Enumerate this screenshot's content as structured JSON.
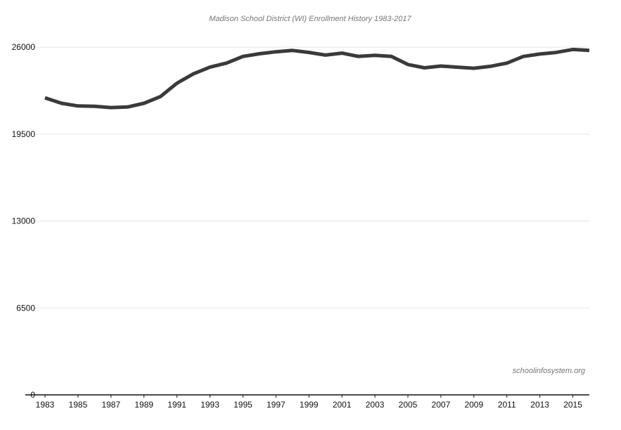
{
  "chart_data": {
    "type": "line",
    "title": "Madison School District (WI) Enrollment History 1983-2017",
    "xlabel": "",
    "ylabel": "",
    "watermark": "schoolinfosystem.org",
    "ylim": [
      0,
      26000
    ],
    "xlim": [
      1983,
      2016
    ],
    "grid": true,
    "legend": "none",
    "y_ticks": [
      0,
      6500,
      13000,
      19500,
      26000
    ],
    "x_ticks": [
      1983,
      1985,
      1987,
      1989,
      1991,
      1993,
      1995,
      1997,
      1999,
      2001,
      2003,
      2005,
      2007,
      2009,
      2011,
      2013,
      2015
    ],
    "line_color": "#3a3a3a",
    "grid_color": "#e6e6e6",
    "axis_color": "#111111",
    "series": [
      {
        "x": [
          1983,
          1984,
          1985,
          1986,
          1987,
          1988,
          1989,
          1990,
          1991,
          1992,
          1993,
          1994,
          1995,
          1996,
          1997,
          1998,
          1999,
          2000,
          2001,
          2002,
          2003,
          2004,
          2005,
          2006,
          2007,
          2008,
          2009,
          2010,
          2011,
          2012,
          2013,
          2014,
          2015,
          2016
        ],
        "values": [
          22200,
          21800,
          21600,
          21580,
          21480,
          21520,
          21800,
          22300,
          23300,
          24000,
          24500,
          24800,
          25300,
          25500,
          25650,
          25750,
          25600,
          25400,
          25550,
          25300,
          25380,
          25300,
          24700,
          24450,
          24580,
          24500,
          24420,
          24560,
          24800,
          25300,
          25480,
          25600,
          25820,
          25750
        ]
      }
    ]
  }
}
